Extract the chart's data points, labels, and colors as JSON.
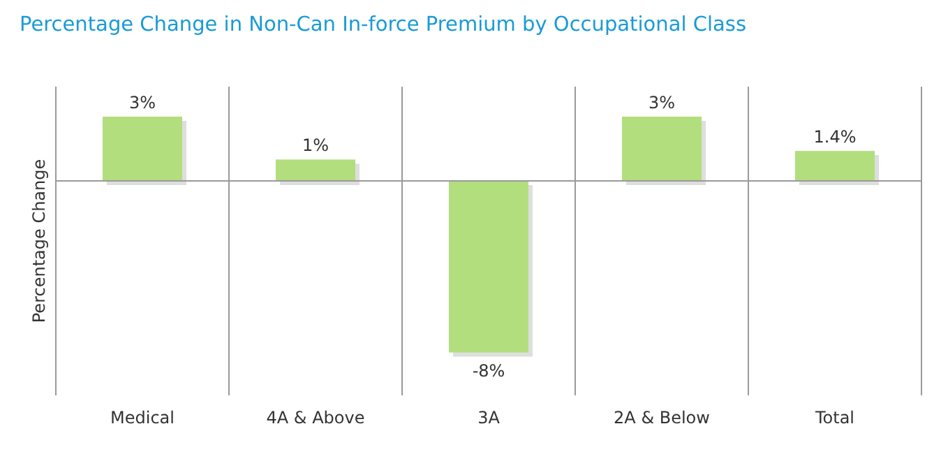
{
  "chart_data": {
    "type": "bar",
    "title": "Percentage Change in Non-Can In-force Premium by Occupational Class",
    "ylabel": "Percentage Change",
    "categories": [
      "Medical",
      "4A & Above",
      "3A",
      "2A & Below",
      "Total"
    ],
    "values": [
      3,
      1,
      -8,
      3,
      1.4
    ],
    "value_labels": [
      "3%",
      "1%",
      "-8%",
      "3%",
      "1.4%"
    ],
    "color": "#b2de7e",
    "relative": false,
    "ylim": [
      -10,
      4.4
    ],
    "grid": "x"
  }
}
